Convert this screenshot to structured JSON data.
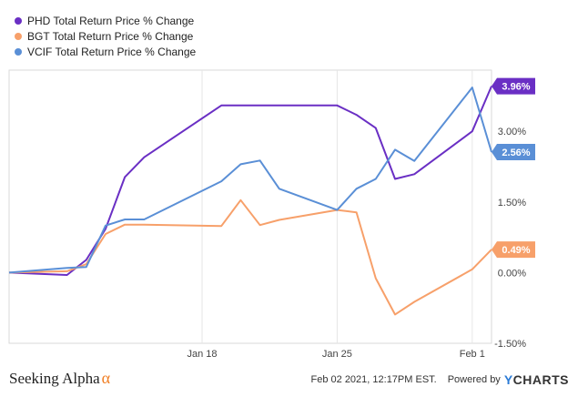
{
  "chart_data": {
    "type": "line",
    "x": [
      "2021-01-08",
      "2021-01-11",
      "2021-01-12",
      "2021-01-13",
      "2021-01-14",
      "2021-01-15",
      "2021-01-19",
      "2021-01-20",
      "2021-01-21",
      "2021-01-22",
      "2021-01-25",
      "2021-01-26",
      "2021-01-27",
      "2021-01-28",
      "2021-01-29",
      "2021-02-01",
      "2021-02-02"
    ],
    "x_ticks": [
      {
        "date": "2021-01-18",
        "label": "Jan 18"
      },
      {
        "date": "2021-01-25",
        "label": "Jan 25"
      },
      {
        "date": "2021-02-01",
        "label": "Feb 1"
      }
    ],
    "series": [
      {
        "name": "PHD Total Return Price % Change",
        "color": "#6a2fc4",
        "values": [
          0.0,
          -0.05,
          0.27,
          0.93,
          2.03,
          2.45,
          3.55,
          3.55,
          3.55,
          3.55,
          3.55,
          3.35,
          3.07,
          1.99,
          2.09,
          3.0,
          3.96
        ]
      },
      {
        "name": "BGT Total Return Price % Change",
        "color": "#f7a06a",
        "values": [
          0.0,
          0.03,
          0.18,
          0.82,
          1.02,
          1.02,
          0.99,
          1.54,
          1.01,
          1.12,
          1.33,
          1.28,
          -0.12,
          -0.89,
          -0.62,
          0.07,
          0.49
        ]
      },
      {
        "name": "VCIF Total Return Price % Change",
        "color": "#5a8fd6",
        "values": [
          0.0,
          0.1,
          0.12,
          1.0,
          1.13,
          1.13,
          1.94,
          2.3,
          2.38,
          1.78,
          1.33,
          1.78,
          1.99,
          2.61,
          2.37,
          3.93,
          2.56
        ]
      }
    ],
    "y_ticks": [
      {
        "v": 3.0,
        "label": "3.00%"
      },
      {
        "v": 1.5,
        "label": "1.50%"
      },
      {
        "v": 0.0,
        "label": "0.00%"
      },
      {
        "v": -1.5,
        "label": "-1.50%"
      }
    ],
    "ylim": [
      -1.5,
      4.3
    ],
    "end_labels": [
      "3.96%",
      "0.49%",
      "2.56%"
    ],
    "grid": "vertical",
    "legend_position": "top-left"
  },
  "footer": {
    "source": "Seeking Alpha",
    "alpha_symbol": "α",
    "timestamp": "Feb 02 2021, 12:17PM EST.",
    "powered": "Powered by",
    "brand_y": "Y",
    "brand_rest": "CHARTS"
  }
}
